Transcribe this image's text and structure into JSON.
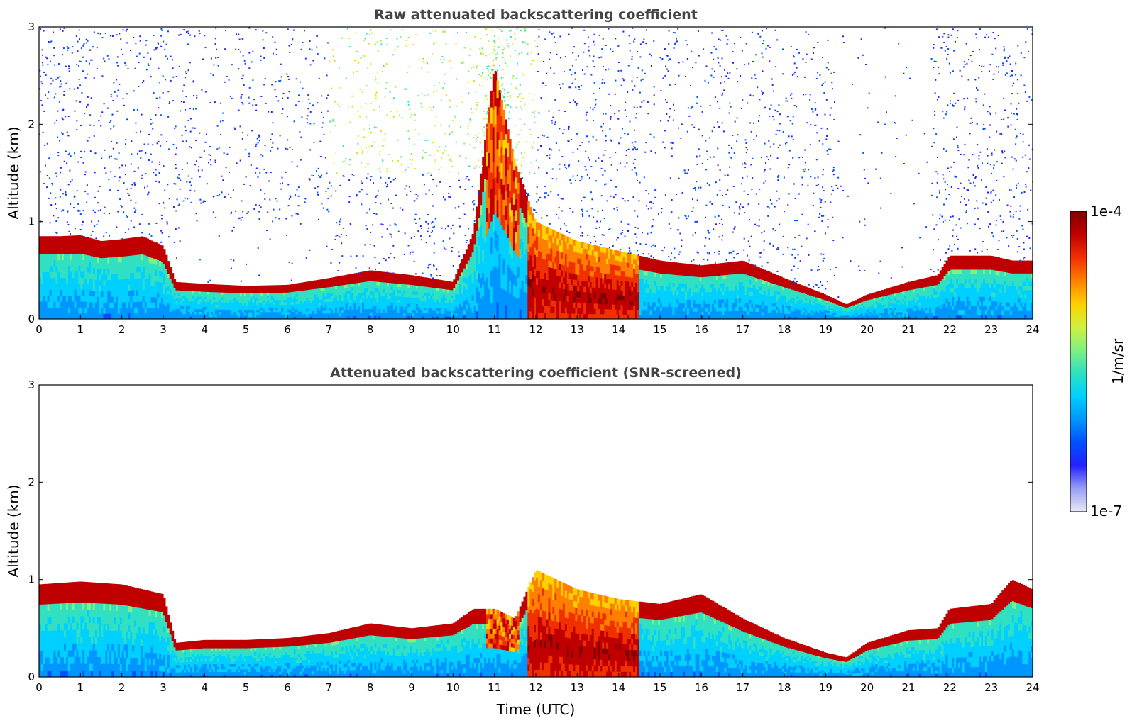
{
  "chart_data": [
    {
      "type": "heatmap",
      "title": "Raw attenuated backscattering coefficient",
      "xlabel": "",
      "ylabel": "Altitude (km)",
      "xlim": [
        0,
        24
      ],
      "ylim": [
        0,
        3
      ],
      "xticks": [
        "0",
        "1",
        "2",
        "3",
        "4",
        "5",
        "6",
        "7",
        "8",
        "9",
        "10",
        "11",
        "12",
        "13",
        "14",
        "15",
        "16",
        "17",
        "18",
        "19",
        "20",
        "21",
        "22",
        "23",
        "24"
      ],
      "yticks": [
        "0",
        "1",
        "2",
        "3"
      ],
      "screened": false,
      "cloud_top_km": [
        [
          0,
          0.85
        ],
        [
          0.5,
          0.85
        ],
        [
          1,
          0.86
        ],
        [
          1.5,
          0.8
        ],
        [
          2,
          0.82
        ],
        [
          2.5,
          0.85
        ],
        [
          3,
          0.75
        ],
        [
          3.3,
          0.38
        ],
        [
          4,
          0.36
        ],
        [
          5,
          0.34
        ],
        [
          6,
          0.35
        ],
        [
          7,
          0.42
        ],
        [
          8,
          0.5
        ],
        [
          9,
          0.45
        ],
        [
          10,
          0.38
        ],
        [
          10.5,
          0.9
        ],
        [
          11,
          2.6
        ],
        [
          11.5,
          1.6
        ],
        [
          12,
          1.0
        ],
        [
          13,
          0.8
        ],
        [
          14,
          0.7
        ],
        [
          15,
          0.6
        ],
        [
          16,
          0.55
        ],
        [
          17,
          0.6
        ],
        [
          18,
          0.42
        ],
        [
          19,
          0.25
        ],
        [
          19.5,
          0.15
        ],
        [
          20,
          0.25
        ],
        [
          21,
          0.38
        ],
        [
          21.7,
          0.45
        ],
        [
          22,
          0.65
        ],
        [
          23,
          0.65
        ],
        [
          23.5,
          0.6
        ],
        [
          24,
          0.6
        ]
      ]
    },
    {
      "type": "heatmap",
      "title": "Attenuated backscattering coefficient (SNR-screened)",
      "xlabel": "Time (UTC)",
      "ylabel": "Altitude (km)",
      "xlim": [
        0,
        24
      ],
      "ylim": [
        0,
        3
      ],
      "xticks": [
        "0",
        "1",
        "2",
        "3",
        "4",
        "5",
        "6",
        "7",
        "8",
        "9",
        "10",
        "11",
        "12",
        "13",
        "14",
        "15",
        "16",
        "17",
        "18",
        "19",
        "20",
        "21",
        "22",
        "23",
        "24"
      ],
      "yticks": [
        "0",
        "1",
        "2",
        "3"
      ],
      "screened": true,
      "cloud_top_km": [
        [
          0,
          0.95
        ],
        [
          1,
          0.98
        ],
        [
          2,
          0.95
        ],
        [
          3,
          0.85
        ],
        [
          3.3,
          0.35
        ],
        [
          4,
          0.38
        ],
        [
          5,
          0.38
        ],
        [
          6,
          0.4
        ],
        [
          7,
          0.45
        ],
        [
          8,
          0.55
        ],
        [
          9,
          0.5
        ],
        [
          10,
          0.55
        ],
        [
          10.5,
          0.7
        ],
        [
          11,
          0.7
        ],
        [
          11.5,
          0.6
        ],
        [
          12,
          1.1
        ],
        [
          13,
          0.9
        ],
        [
          14,
          0.8
        ],
        [
          15,
          0.75
        ],
        [
          16,
          0.85
        ],
        [
          17,
          0.6
        ],
        [
          18,
          0.4
        ],
        [
          19,
          0.25
        ],
        [
          19.5,
          0.2
        ],
        [
          20,
          0.35
        ],
        [
          21,
          0.48
        ],
        [
          21.7,
          0.5
        ],
        [
          22,
          0.7
        ],
        [
          23,
          0.75
        ],
        [
          23.5,
          1.0
        ],
        [
          24,
          0.9
        ]
      ]
    }
  ],
  "colorbar": {
    "label": "1/m/sr",
    "max_label": "1e-4",
    "min_label": "1e-7",
    "colors": [
      "#e8e8f8",
      "#9aa0f4",
      "#2222ff",
      "#0050ff",
      "#0096ff",
      "#00d0ff",
      "#30e0c0",
      "#80f080",
      "#d0f040",
      "#ffd000",
      "#ff8000",
      "#f03000",
      "#c00000",
      "#800000"
    ]
  }
}
